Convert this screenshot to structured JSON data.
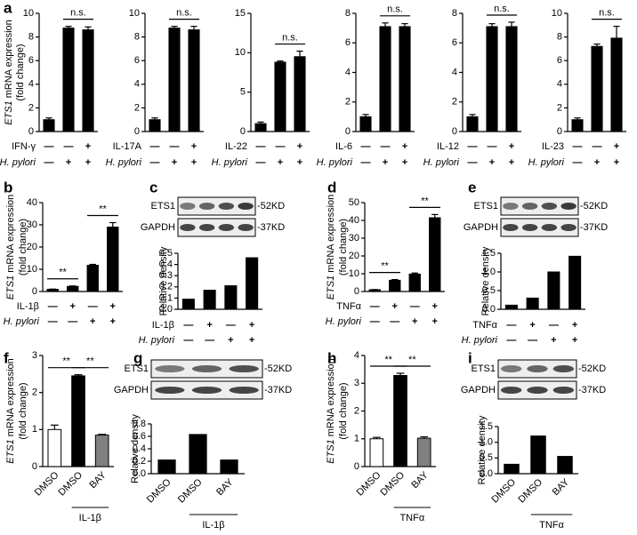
{
  "chart_data": [
    {
      "panel": "a",
      "type": "bar",
      "ylabel": {
        "gene": "ETS1",
        "text": "mRNA expression",
        "unit": "(fold change)"
      },
      "values": [
        1,
        8.75,
        8.6
      ],
      "errors": [
        0.15,
        0.15,
        0.25
      ],
      "color": "#000000",
      "ylim": [
        0,
        10
      ],
      "yticks": [
        0,
        2,
        4,
        6,
        8,
        10
      ],
      "conditions": [
        {
          "label": "IFN-γ",
          "italic": false,
          "signs": [
            "—",
            "—",
            "+"
          ]
        },
        {
          "label": "H. pylori",
          "italic": true,
          "signs": [
            "—",
            "+",
            "+"
          ]
        }
      ],
      "comparisons": [
        {
          "label": "n.s.",
          "bars": [
            1,
            2
          ]
        }
      ]
    },
    {
      "type": "bar",
      "values": [
        1,
        8.75,
        8.6
      ],
      "errors": [
        0.15,
        0.15,
        0.3
      ],
      "color": "#000000",
      "ylim": [
        0,
        10
      ],
      "yticks": [
        0,
        2,
        4,
        6,
        8,
        10
      ],
      "conditions": [
        {
          "label": "IL-17A",
          "italic": false,
          "signs": [
            "—",
            "—",
            "+"
          ]
        },
        {
          "label": "H. pylori",
          "italic": true,
          "signs": [
            "—",
            "+",
            "+"
          ]
        }
      ],
      "comparisons": [
        {
          "label": "n.s.",
          "bars": [
            1,
            2
          ]
        }
      ]
    },
    {
      "type": "bar",
      "values": [
        1,
        8.8,
        9.5
      ],
      "errors": [
        0.2,
        0.15,
        0.7
      ],
      "color": "#000000",
      "ylim": [
        0,
        15
      ],
      "yticks": [
        0,
        5,
        10,
        15
      ],
      "conditions": [
        {
          "label": "IL-22",
          "italic": false,
          "signs": [
            "—",
            "—",
            "+"
          ]
        },
        {
          "label": "H. pylori",
          "italic": true,
          "signs": [
            "—",
            "+",
            "+"
          ]
        }
      ],
      "comparisons": [
        {
          "label": "n.s.",
          "bars": [
            1,
            2
          ]
        }
      ]
    },
    {
      "type": "bar",
      "values": [
        1,
        7.1,
        7.1
      ],
      "errors": [
        0.15,
        0.25,
        0.2
      ],
      "color": "#000000",
      "ylim": [
        0,
        8
      ],
      "yticks": [
        0,
        2,
        4,
        6,
        8
      ],
      "conditions": [
        {
          "label": "IL-6",
          "italic": false,
          "signs": [
            "—",
            "—",
            "+"
          ]
        },
        {
          "label": "H. pylori",
          "italic": true,
          "signs": [
            "—",
            "+",
            "+"
          ]
        }
      ],
      "comparisons": [
        {
          "label": "n.s.",
          "bars": [
            1,
            2
          ]
        }
      ]
    },
    {
      "type": "bar",
      "values": [
        1,
        7.1,
        7.1
      ],
      "errors": [
        0.15,
        0.2,
        0.3
      ],
      "color": "#000000",
      "ylim": [
        0,
        8
      ],
      "yticks": [
        0,
        2,
        4,
        6,
        8
      ],
      "conditions": [
        {
          "label": "IL-12",
          "italic": false,
          "signs": [
            "—",
            "—",
            "+"
          ]
        },
        {
          "label": "H. pylori",
          "italic": true,
          "signs": [
            "—",
            "+",
            "+"
          ]
        }
      ],
      "comparisons": [
        {
          "label": "n.s.",
          "bars": [
            1,
            2
          ]
        }
      ]
    },
    {
      "type": "bar",
      "values": [
        1,
        7.2,
        7.9
      ],
      "errors": [
        0.15,
        0.2,
        1.0
      ],
      "color": "#000000",
      "ylim": [
        0,
        10
      ],
      "yticks": [
        0,
        2,
        4,
        6,
        8,
        10
      ],
      "conditions": [
        {
          "label": "IL-23",
          "italic": false,
          "signs": [
            "—",
            "—",
            "+"
          ]
        },
        {
          "label": "H. pylori",
          "italic": true,
          "signs": [
            "—",
            "+",
            "+"
          ]
        }
      ],
      "comparisons": [
        {
          "label": "n.s.",
          "bars": [
            1,
            2
          ]
        }
      ]
    },
    {
      "panel": "b",
      "type": "bar",
      "ylabel": {
        "gene": "ETS1",
        "text": "mRNA expression",
        "unit": "(fold change)"
      },
      "values": [
        1,
        2.3,
        11.8,
        29
      ],
      "errors": [
        0.1,
        0.2,
        0.4,
        2
      ],
      "color": "#000000",
      "ylim": [
        0,
        40
      ],
      "yticks": [
        0,
        10,
        20,
        30,
        40
      ],
      "conditions": [
        {
          "label": "IL-1β",
          "italic": false,
          "signs": [
            "—",
            "+",
            "—",
            "+"
          ]
        },
        {
          "label": "H. pylori",
          "italic": true,
          "signs": [
            "—",
            "—",
            "+",
            "+"
          ]
        }
      ],
      "comparisons": [
        {
          "label": "**",
          "bars": [
            0,
            1
          ]
        },
        {
          "label": "**",
          "bars": [
            2,
            3
          ]
        }
      ]
    },
    {
      "panel": "c",
      "type": "bar",
      "ylabel": "Relative density",
      "blot": [
        {
          "label": "ETS1",
          "size": "-52KD"
        },
        {
          "label": "GAPDH",
          "size": "-37KD"
        }
      ],
      "values": [
        0.09,
        0.17,
        0.21,
        0.46
      ],
      "color": "#000000",
      "ylim": [
        0,
        0.5
      ],
      "yticks": [
        {
          "value": 0,
          "label": "0.0"
        },
        0.1,
        0.2,
        0.3,
        0.4,
        0.5
      ],
      "conditions": [
        {
          "label": "IL-1β",
          "italic": false,
          "signs": [
            "—",
            "+",
            "—",
            "+"
          ]
        },
        {
          "label": "H. pylori",
          "italic": true,
          "signs": [
            "—",
            "—",
            "+",
            "+"
          ]
        }
      ]
    },
    {
      "panel": "d",
      "type": "bar",
      "ylabel": {
        "gene": "ETS1",
        "text": "mRNA expression",
        "unit": "(fold change)"
      },
      "values": [
        1,
        6.3,
        9.8,
        41.5
      ],
      "errors": [
        0.1,
        0.4,
        0.6,
        1.8
      ],
      "color": "#000000",
      "ylim": [
        0,
        50
      ],
      "yticks": [
        0,
        10,
        20,
        30,
        40,
        50
      ],
      "conditions": [
        {
          "label": "TNFα",
          "italic": false,
          "signs": [
            "—",
            "+",
            "—",
            "+"
          ]
        },
        {
          "label": "H. pylori",
          "italic": true,
          "signs": [
            "—",
            "—",
            "+",
            "+"
          ]
        }
      ],
      "comparisons": [
        {
          "label": "**",
          "bars": [
            0,
            1
          ]
        },
        {
          "label": "**",
          "bars": [
            2,
            3
          ]
        }
      ]
    },
    {
      "panel": "e",
      "type": "bar",
      "ylabel": "Relative density",
      "blot": [
        {
          "label": "ETS1",
          "size": "-52KD"
        },
        {
          "label": "GAPDH",
          "size": "-37KD"
        }
      ],
      "values": [
        0.11,
        0.3,
        1.0,
        1.42
      ],
      "color": "#000000",
      "ylim": [
        0,
        1.5
      ],
      "yticks": [
        {
          "value": 0,
          "label": "0.0"
        },
        0.5,
        {
          "value": 1,
          "label": "1.0"
        },
        1.5
      ],
      "conditions": [
        {
          "label": "TNFα",
          "italic": false,
          "signs": [
            "—",
            "+",
            "—",
            "+"
          ]
        },
        {
          "label": "H. pylori",
          "italic": true,
          "signs": [
            "—",
            "—",
            "+",
            "+"
          ]
        }
      ]
    },
    {
      "panel": "f",
      "type": "bar",
      "ylabel": {
        "gene": "ETS1",
        "text": "mRNA expression",
        "unit": "(fold change)"
      },
      "categories": [
        "DMSO",
        "DMSO",
        "BAY"
      ],
      "group_label": "IL-1β",
      "values": [
        1.0,
        2.45,
        0.85
      ],
      "errors": [
        0.12,
        0.03,
        0.02
      ],
      "colors": [
        "#ffffff",
        "#000000",
        "#808080"
      ],
      "ylim": [
        0,
        3
      ],
      "yticks": [
        0,
        1,
        2,
        3
      ],
      "comparisons": [
        {
          "label": "**",
          "bars": [
            0,
            1
          ]
        },
        {
          "label": "**",
          "bars": [
            1,
            2
          ]
        }
      ]
    },
    {
      "panel": "g",
      "type": "bar",
      "ylabel": "Relative density",
      "blot": [
        {
          "label": "ETS1",
          "size": "-52KD"
        },
        {
          "label": "GAPDH",
          "size": "-37KD"
        }
      ],
      "categories": [
        "DMSO",
        "DMSO",
        "BAY"
      ],
      "group_label": "IL-1β",
      "values": [
        0.22,
        0.63,
        0.22
      ],
      "color": "#000000",
      "ylim": [
        0,
        0.8
      ],
      "yticks": [
        {
          "value": 0,
          "label": "0.0"
        },
        0.2,
        0.4,
        0.6,
        0.8
      ]
    },
    {
      "panel": "h",
      "type": "bar",
      "ylabel": {
        "gene": "ETS1",
        "text": "mRNA expression",
        "unit": "(fold change)"
      },
      "categories": [
        "DMSO",
        "DMSO",
        "BAY"
      ],
      "group_label": "TNFα",
      "values": [
        1.0,
        3.28,
        1.02
      ],
      "errors": [
        0.05,
        0.08,
        0.05
      ],
      "colors": [
        "#ffffff",
        "#000000",
        "#808080"
      ],
      "ylim": [
        0,
        4
      ],
      "yticks": [
        0,
        1,
        2,
        3,
        4
      ],
      "comparisons": [
        {
          "label": "**",
          "bars": [
            0,
            1
          ]
        },
        {
          "label": "**",
          "bars": [
            1,
            2
          ]
        }
      ]
    },
    {
      "panel": "i",
      "type": "bar",
      "ylabel": "Relative density",
      "blot": [
        {
          "label": "ETS1",
          "size": "-52KD"
        },
        {
          "label": "GAPDH",
          "size": "-37KD"
        }
      ],
      "categories": [
        "DMSO",
        "DMSO",
        "BAY"
      ],
      "group_label": "TNFα",
      "values": [
        0.3,
        1.2,
        0.55
      ],
      "color": "#000000",
      "ylim": [
        0,
        1.5
      ],
      "yticks": [
        {
          "value": 0,
          "label": "0.0"
        },
        0.5,
        {
          "value": 1,
          "label": "1.0"
        },
        1.5
      ]
    }
  ]
}
